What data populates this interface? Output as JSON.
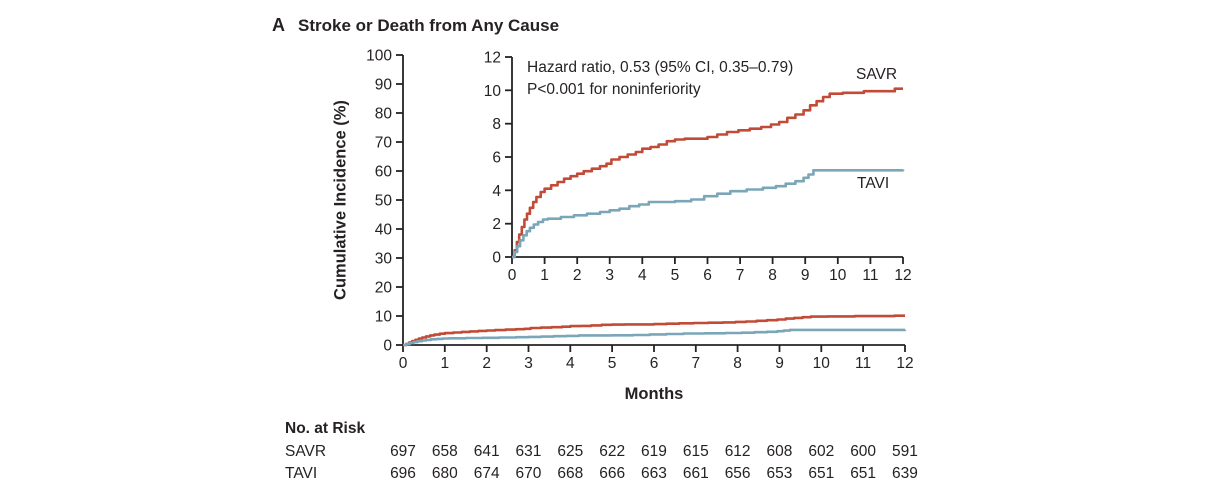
{
  "header": {
    "panel": "A",
    "title": "Stroke or Death from Any Cause"
  },
  "chart_data": {
    "type": "line",
    "step": true,
    "title": "Stroke or Death from Any Cause",
    "xlabel": "Months",
    "main_axis": {
      "ylabel": "Cumulative Incidence (%)",
      "xlim": [
        0,
        12
      ],
      "ylim": [
        0,
        100
      ],
      "xticks": [
        0,
        1,
        2,
        3,
        4,
        5,
        6,
        7,
        8,
        9,
        10,
        11,
        12
      ],
      "yticks": [
        0,
        10,
        20,
        30,
        40,
        50,
        60,
        70,
        80,
        90,
        100
      ],
      "grid": false
    },
    "inset_axis": {
      "xlim": [
        0,
        12
      ],
      "ylim": [
        0,
        12
      ],
      "xticks": [
        0,
        1,
        2,
        3,
        4,
        5,
        6,
        7,
        8,
        9,
        10,
        11,
        12
      ],
      "yticks": [
        0,
        2,
        4,
        6,
        8,
        10,
        12
      ],
      "grid": false
    },
    "annotation": {
      "line1": "Hazard ratio, 0.53 (95% CI, 0.35–0.79)",
      "line2": "P<0.001 for noninferiority"
    },
    "ink_color": "#262223",
    "series": [
      {
        "name": "SAVR",
        "color": "#c24b38",
        "points": [
          [
            0,
            0
          ],
          [
            0.08,
            0.4
          ],
          [
            0.15,
            0.9
          ],
          [
            0.22,
            1.35
          ],
          [
            0.3,
            1.8
          ],
          [
            0.38,
            2.25
          ],
          [
            0.46,
            2.6
          ],
          [
            0.55,
            2.95
          ],
          [
            0.65,
            3.3
          ],
          [
            0.75,
            3.6
          ],
          [
            0.88,
            3.9
          ],
          [
            1,
            4.1
          ],
          [
            1.2,
            4.3
          ],
          [
            1.4,
            4.5
          ],
          [
            1.6,
            4.7
          ],
          [
            1.8,
            4.85
          ],
          [
            2,
            5
          ],
          [
            2.2,
            5.15
          ],
          [
            2.45,
            5.3
          ],
          [
            2.7,
            5.45
          ],
          [
            2.9,
            5.6
          ],
          [
            3.05,
            5.85
          ],
          [
            3.3,
            6
          ],
          [
            3.55,
            6.15
          ],
          [
            3.8,
            6.3
          ],
          [
            4,
            6.5
          ],
          [
            4.25,
            6.6
          ],
          [
            4.5,
            6.75
          ],
          [
            4.75,
            6.95
          ],
          [
            5,
            7.05
          ],
          [
            5.3,
            7.1
          ],
          [
            6,
            7.2
          ],
          [
            6.3,
            7.35
          ],
          [
            6.6,
            7.5
          ],
          [
            6.95,
            7.6
          ],
          [
            7.3,
            7.7
          ],
          [
            7.65,
            7.8
          ],
          [
            7.95,
            7.95
          ],
          [
            8.2,
            8.1
          ],
          [
            8.45,
            8.35
          ],
          [
            8.7,
            8.55
          ],
          [
            8.95,
            8.8
          ],
          [
            9.15,
            9.1
          ],
          [
            9.35,
            9.35
          ],
          [
            9.55,
            9.6
          ],
          [
            9.75,
            9.8
          ],
          [
            10.15,
            9.85
          ],
          [
            10.8,
            9.95
          ],
          [
            11.75,
            10.1
          ],
          [
            12,
            10.1
          ]
        ]
      },
      {
        "name": "TAVI",
        "color": "#7aa6b8",
        "points": [
          [
            0,
            0
          ],
          [
            0.08,
            0.3
          ],
          [
            0.16,
            0.65
          ],
          [
            0.25,
            1
          ],
          [
            0.35,
            1.3
          ],
          [
            0.45,
            1.55
          ],
          [
            0.55,
            1.75
          ],
          [
            0.67,
            1.95
          ],
          [
            0.8,
            2.1
          ],
          [
            0.95,
            2.25
          ],
          [
            1.1,
            2.3
          ],
          [
            1.5,
            2.4
          ],
          [
            1.9,
            2.5
          ],
          [
            2.3,
            2.6
          ],
          [
            2.7,
            2.7
          ],
          [
            3,
            2.8
          ],
          [
            3.3,
            2.9
          ],
          [
            3.6,
            3.05
          ],
          [
            3.9,
            3.15
          ],
          [
            4.2,
            3.3
          ],
          [
            5,
            3.35
          ],
          [
            5.5,
            3.45
          ],
          [
            5.9,
            3.65
          ],
          [
            6.3,
            3.8
          ],
          [
            6.7,
            3.95
          ],
          [
            7.2,
            4.05
          ],
          [
            7.7,
            4.15
          ],
          [
            8.1,
            4.25
          ],
          [
            8.4,
            4.4
          ],
          [
            8.7,
            4.55
          ],
          [
            8.95,
            4.75
          ],
          [
            9.1,
            4.95
          ],
          [
            9.25,
            5.2
          ],
          [
            12,
            5.25
          ]
        ]
      }
    ]
  },
  "risk_table": {
    "title": "No. at Risk",
    "months": [
      0,
      1,
      2,
      3,
      4,
      5,
      6,
      7,
      8,
      9,
      10,
      11,
      12
    ],
    "rows": [
      {
        "label": "SAVR",
        "values": [
          697,
          658,
          641,
          631,
          625,
          622,
          619,
          615,
          612,
          608,
          602,
          600,
          591
        ]
      },
      {
        "label": "TAVI",
        "values": [
          696,
          680,
          674,
          670,
          668,
          666,
          663,
          661,
          656,
          653,
          651,
          651,
          639
        ]
      }
    ]
  }
}
